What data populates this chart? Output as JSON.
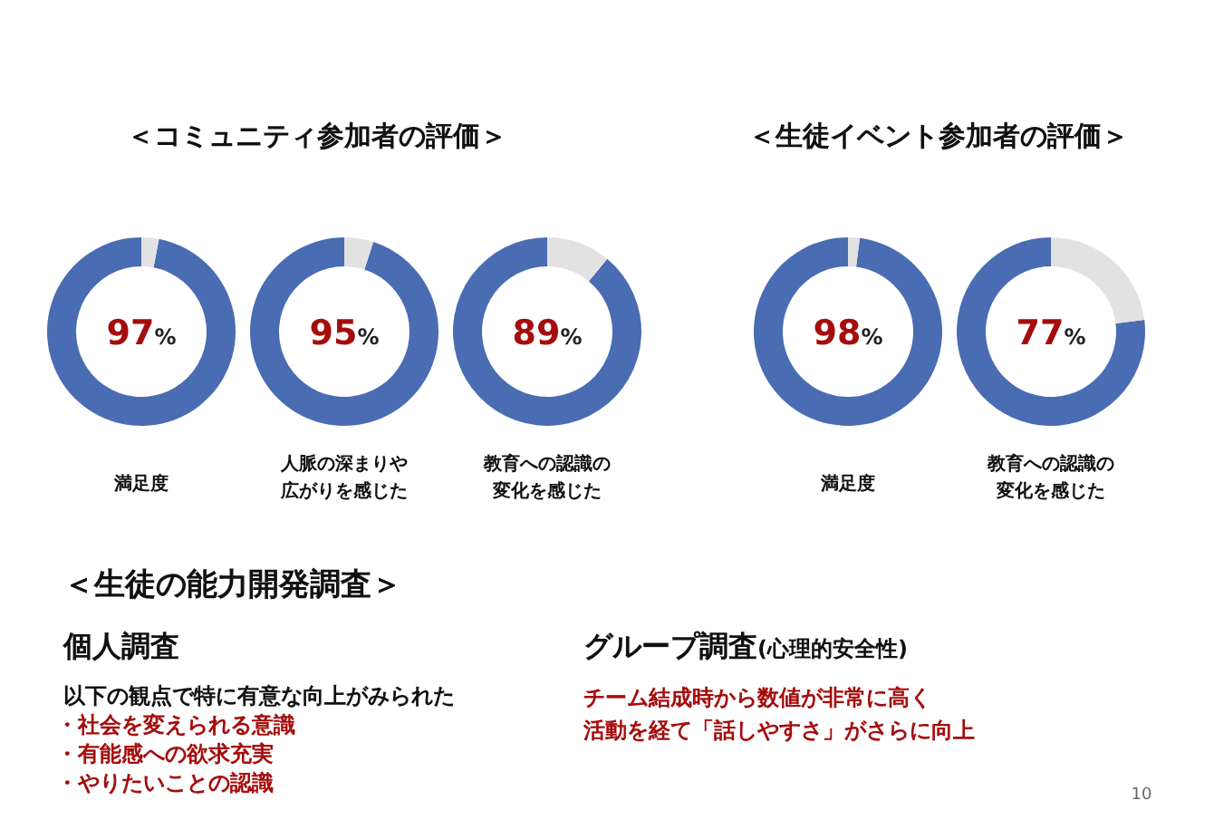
{
  "chart_data": [
    {
      "type": "donut",
      "title": "＜コミュニティ参加者の評価＞",
      "xlabel": "満足度",
      "categories": [
        null,
        null
      ],
      "values": [
        97,
        3
      ],
      "colors": [
        "#4a6cb3",
        "#e2e2e2"
      ],
      "value_labels": [
        "97%",
        null
      ]
    },
    {
      "type": "donut",
      "xlabel": "人脈の深まりや広がりを感じた",
      "categories": [
        null,
        null
      ],
      "values": [
        95,
        5
      ],
      "colors": [
        "#4a6cb3",
        "#e2e2e2"
      ],
      "value_labels": [
        "95%",
        null
      ]
    },
    {
      "type": "donut",
      "xlabel": "教育への認識の変化を感じた",
      "categories": [
        null,
        null
      ],
      "values": [
        89,
        11
      ],
      "colors": [
        "#4a6cb3",
        "#e2e2e2"
      ],
      "value_labels": [
        "89%",
        null
      ]
    },
    {
      "type": "donut",
      "title": "＜生徒イベント参加者の評価＞",
      "xlabel": "満足度",
      "categories": [
        null,
        null
      ],
      "values": [
        98,
        2
      ],
      "colors": [
        "#4a6cb3",
        "#e2e2e2"
      ],
      "value_labels": [
        "98%",
        null
      ]
    },
    {
      "type": "donut",
      "xlabel": "教育への認識の変化を感じた",
      "categories": [
        null,
        null
      ],
      "values": [
        77,
        23
      ],
      "colors": [
        "#4a6cb3",
        "#e2e2e2"
      ],
      "value_labels": [
        "77%",
        null
      ]
    },
    {
      "type": "other",
      "title": "＜生徒の能力開発調査＞",
      "annotations": [
        "10"
      ]
    },
    {
      "type": "other",
      "title": "個人調査",
      "subtitle": "以下の観点で特に有意な向上がみられた",
      "annotations": [
        "・社会を変えられる意識",
        "・有能感への欲求充実",
        "・やりたいことの認識"
      ]
    },
    {
      "type": "other",
      "title": "グループ調査",
      "subtitle": "(心理的安全性)",
      "annotations": [
        "チーム結成時から数値が非常に高く",
        "活動を経て「話しやすさ」がさらに向上"
      ]
    }
  ]
}
